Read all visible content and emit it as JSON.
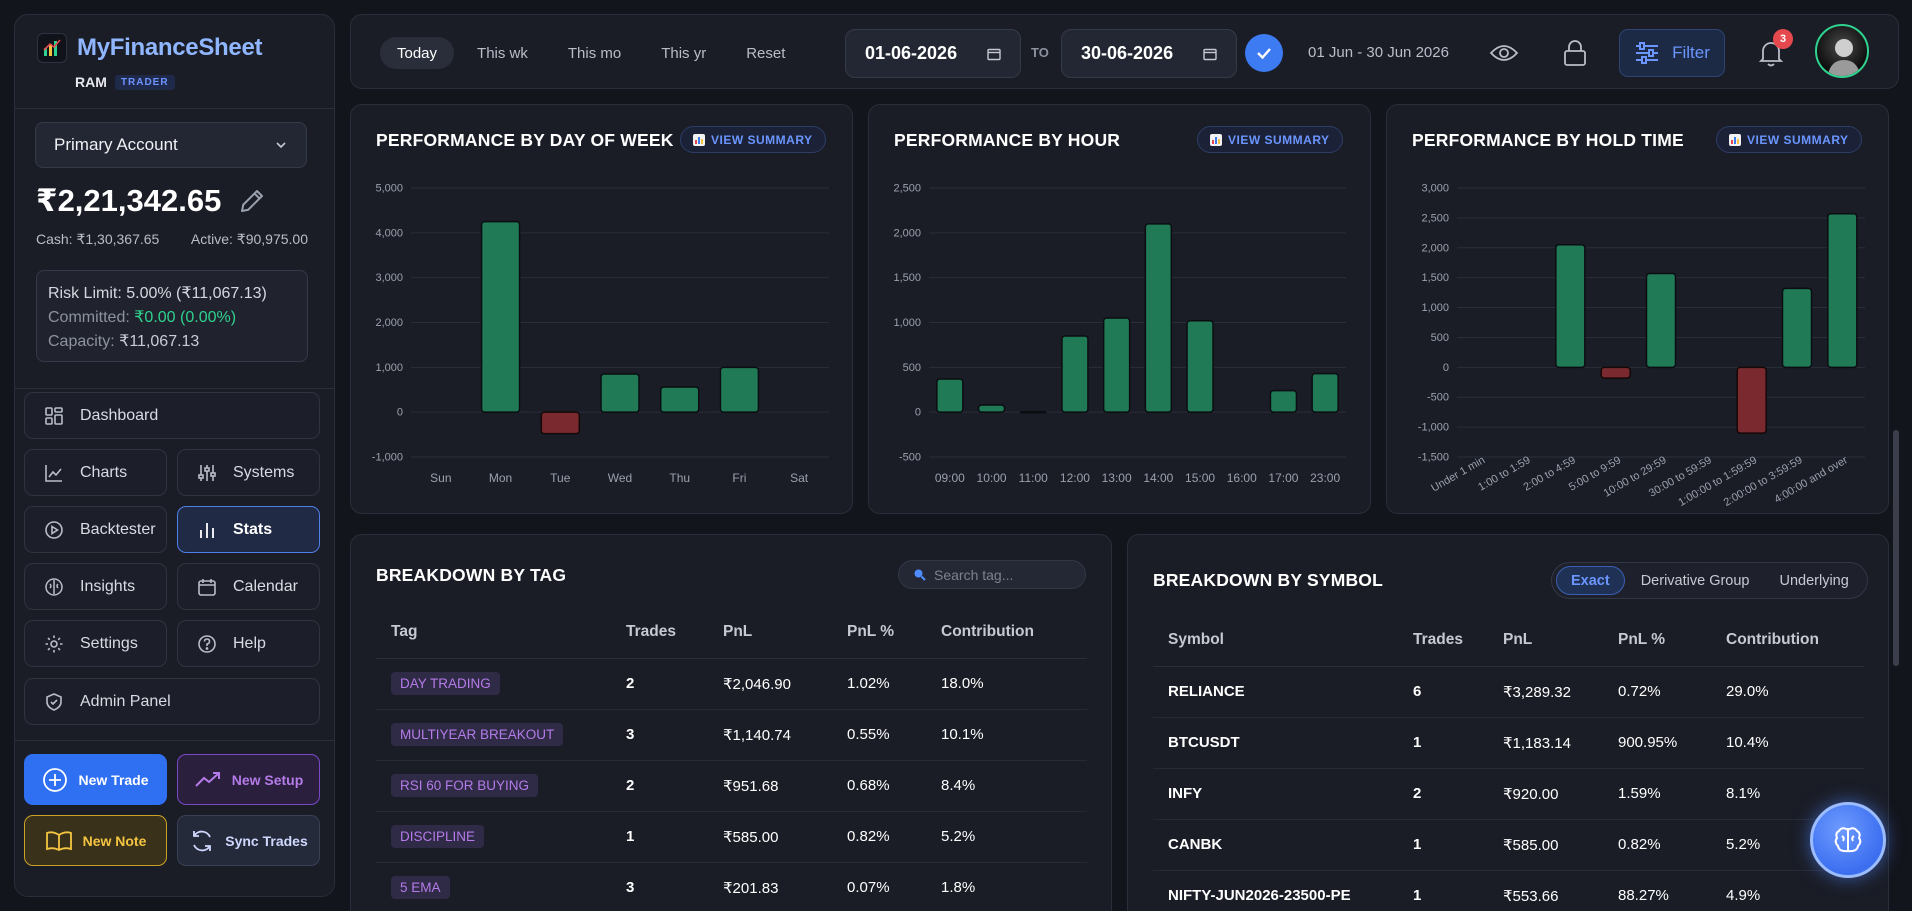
{
  "sidebar": {
    "brand": "MyFinanceSheet",
    "user": "RAM",
    "role": "TRADER",
    "account": "Primary Account",
    "balance": "₹2,21,342.65",
    "cash": "Cash: ₹1,30,367.65",
    "active": "Active: ₹90,975.00",
    "risk_limit": "Risk Limit: 5.00% (₹11,067.13)",
    "committed_label": "Committed:",
    "committed_value": "₹0.00 (0.00%)",
    "capacity_label": "Capacity:",
    "capacity_value": "₹11,067.13",
    "nav": {
      "dashboard": "Dashboard",
      "charts": "Charts",
      "systems": "Systems",
      "backtester": "Backtester",
      "stats": "Stats",
      "insights": "Insights",
      "calendar": "Calendar",
      "settings": "Settings",
      "help": "Help",
      "admin": "Admin Panel"
    },
    "actions": {
      "new_trade": "New Trade",
      "new_setup": "New Setup",
      "new_note": "New Note",
      "sync_trades": "Sync Trades"
    }
  },
  "topbar": {
    "tabs": [
      "Today",
      "This wk",
      "This mo",
      "This yr",
      "Reset"
    ],
    "active_tab": "Today",
    "date_from": "01-06-2026",
    "to_label": "TO",
    "date_to": "30-06-2026",
    "range_text": "01 Jun - 30 Jun 2026",
    "filter_label": "Filter",
    "notification_count": "3"
  },
  "cards": {
    "dow_title": "PERFORMANCE BY DAY OF WEEK",
    "hour_title": "PERFORMANCE BY HOUR",
    "hold_title": "PERFORMANCE BY HOLD TIME",
    "view_summary": "VIEW SUMMARY"
  },
  "chart_data": [
    {
      "type": "bar",
      "title": "PERFORMANCE BY DAY OF WEEK",
      "categories": [
        "Sun",
        "Mon",
        "Tue",
        "Wed",
        "Thu",
        "Fri",
        "Sat"
      ],
      "values": [
        0,
        4250,
        -480,
        850,
        560,
        1000,
        0
      ],
      "yticks": [
        5000,
        4000,
        3000,
        2000,
        1000,
        0,
        -1000
      ],
      "ylim": [
        -1000,
        5000
      ],
      "grid": true
    },
    {
      "type": "bar",
      "title": "PERFORMANCE BY HOUR",
      "categories": [
        "09:00",
        "10:00",
        "11:00",
        "12:00",
        "13:00",
        "14:00",
        "15:00",
        "16:00",
        "17:00",
        "23:00"
      ],
      "values": [
        370,
        80,
        5,
        850,
        1050,
        2100,
        1020,
        0,
        240,
        430
      ],
      "yticks": [
        2500,
        2000,
        1500,
        1000,
        500,
        0,
        -500
      ],
      "ylim": [
        -500,
        2500
      ],
      "grid": true
    },
    {
      "type": "bar",
      "title": "PERFORMANCE BY HOLD TIME",
      "categories": [
        "Under 1 min",
        "1:00 to 1:59",
        "2:00 to 4:59",
        "5:00 to 9:59",
        "10:00 to 29:59",
        "30:00 to 59:59",
        "1:00:00 to 1:59:59",
        "2:00:00 to 3:59:59",
        "4:00:00 and over"
      ],
      "values": [
        0,
        0,
        2050,
        -180,
        1570,
        0,
        -1100,
        1320,
        2570
      ],
      "yticks": [
        3000,
        2500,
        2000,
        1500,
        1000,
        500,
        0,
        -500,
        -1000,
        -1500
      ],
      "ylim": [
        -1500,
        3000
      ],
      "grid": true
    }
  ],
  "tag_table": {
    "title": "BREAKDOWN BY TAG",
    "search_placeholder": "Search tag...",
    "headers": [
      "Tag",
      "Trades",
      "PnL",
      "PnL %",
      "Contribution"
    ],
    "rows": [
      [
        "DAY TRADING",
        "2",
        "₹2,046.90",
        "1.02%",
        "18.0%"
      ],
      [
        "MULTIYEAR BREAKOUT",
        "3",
        "₹1,140.74",
        "0.55%",
        "10.1%"
      ],
      [
        "RSI 60 FOR BUYING",
        "2",
        "₹951.68",
        "0.68%",
        "8.4%"
      ],
      [
        "DISCIPLINE",
        "1",
        "₹585.00",
        "0.82%",
        "5.2%"
      ],
      [
        "5 EMA",
        "3",
        "₹201.83",
        "0.07%",
        "1.8%"
      ]
    ]
  },
  "symbol_table": {
    "title": "BREAKDOWN BY SYMBOL",
    "segments": [
      "Exact",
      "Derivative Group",
      "Underlying"
    ],
    "active_segment": "Exact",
    "headers": [
      "Symbol",
      "Trades",
      "PnL",
      "PnL %",
      "Contribution"
    ],
    "rows": [
      [
        "RELIANCE",
        "6",
        "₹3,289.32",
        "0.72%",
        "29.0%"
      ],
      [
        "BTCUSDT",
        "1",
        "₹1,183.14",
        "900.95%",
        "10.4%"
      ],
      [
        "INFY",
        "2",
        "₹920.00",
        "1.59%",
        "8.1%"
      ],
      [
        "CANBK",
        "1",
        "₹585.00",
        "0.82%",
        "5.2%"
      ],
      [
        "NIFTY-JUN2026-23500-PE",
        "1",
        "₹553.66",
        "88.27%",
        "4.9%"
      ]
    ]
  },
  "colors": {
    "positive_bar": "#1f7a55",
    "negative_bar": "#7a2a2e",
    "accent": "#3d7bf2",
    "green_text": "#2fd28f"
  }
}
